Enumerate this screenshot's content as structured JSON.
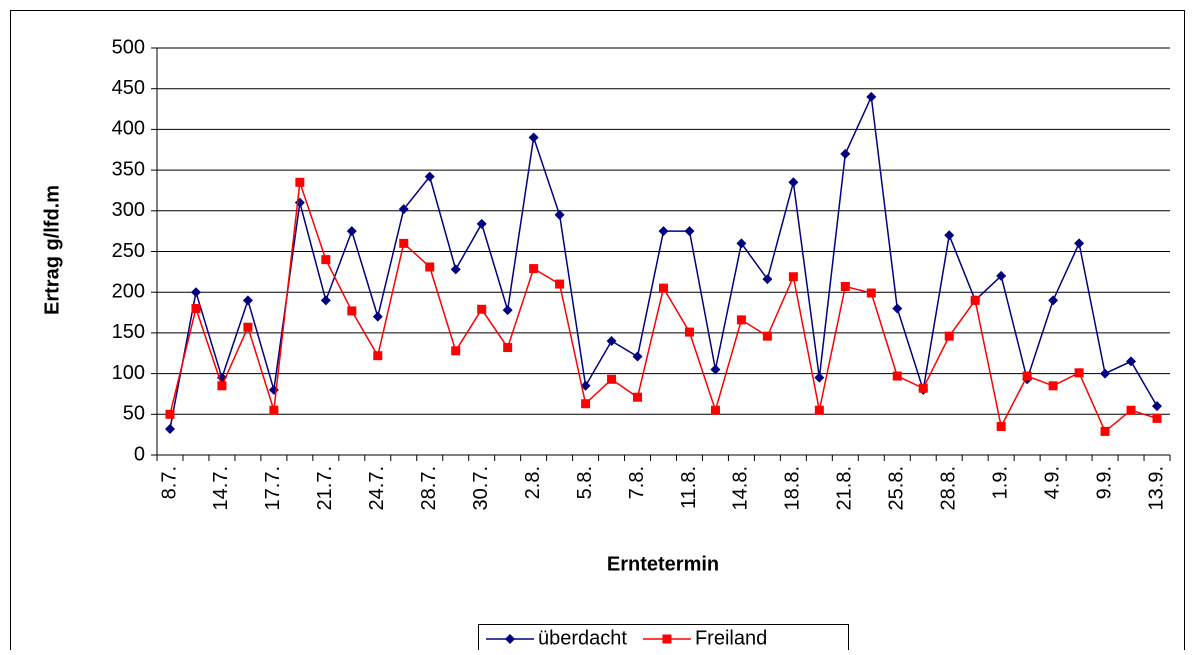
{
  "chart_data": {
    "type": "line",
    "x_label": "Erntetermin",
    "y_label": "Ertrag g/lfd.m",
    "categories": [
      "8.7.",
      null,
      "14.7.",
      null,
      "17.7.",
      null,
      "21.7.",
      null,
      "24.7.",
      null,
      "28.7.",
      null,
      "30.7.",
      null,
      "2.8.",
      null,
      "5.8.",
      null,
      "7.8.",
      null,
      "11.8.",
      null,
      "14.8.",
      null,
      "18.8.",
      null,
      "21.8.",
      null,
      "25.8.",
      null,
      "28.8.",
      null,
      "1.9.",
      null,
      "4.9.",
      null,
      "9.9.",
      null,
      "13.9."
    ],
    "series": [
      {
        "name": "überdacht",
        "color": "#000080",
        "marker": "diamond",
        "values": [
          32,
          200,
          95,
          190,
          80,
          310,
          190,
          275,
          170,
          302,
          342,
          228,
          284,
          178,
          390,
          295,
          85,
          140,
          121,
          275,
          275,
          105,
          260,
          216,
          335,
          95,
          370,
          440,
          180,
          80,
          270,
          190,
          220,
          93,
          190,
          260,
          100,
          115,
          60
        ]
      },
      {
        "name": "Freiland",
        "color": "#ff0000",
        "marker": "square",
        "values": [
          50,
          180,
          85,
          157,
          55,
          335,
          240,
          177,
          122,
          260,
          231,
          128,
          179,
          132,
          229,
          210,
          63,
          93,
          71,
          205,
          151,
          55,
          166,
          146,
          219,
          55,
          207,
          199,
          97,
          82,
          146,
          190,
          35,
          97,
          85,
          101,
          29,
          55,
          45
        ]
      }
    ],
    "ylim": [
      0,
      500
    ],
    "yticks": [
      0,
      50,
      100,
      150,
      200,
      250,
      300,
      350,
      400,
      450,
      500
    ],
    "grid": true,
    "legend": "bottom"
  }
}
